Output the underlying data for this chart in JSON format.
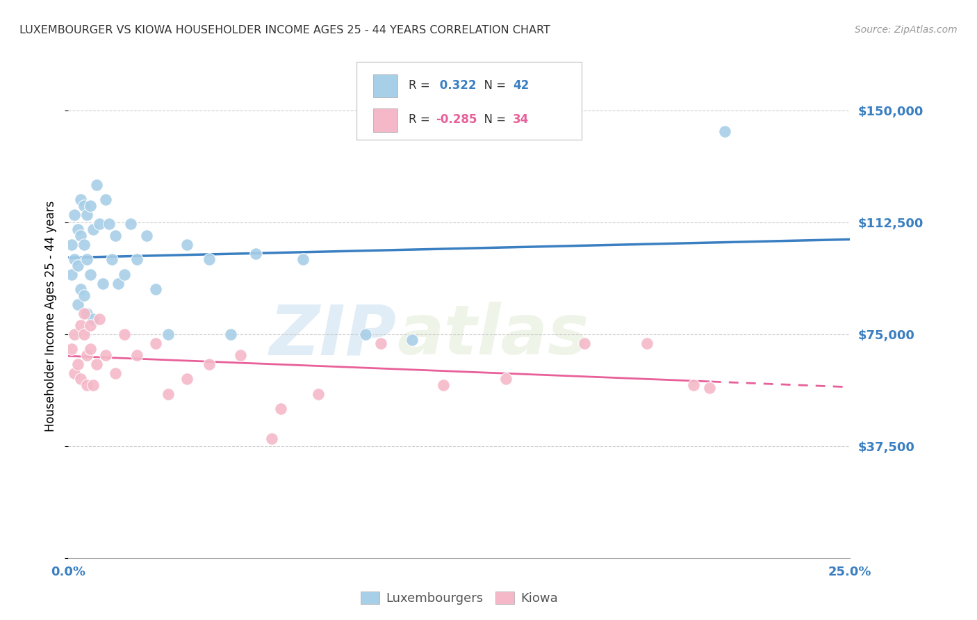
{
  "title": "LUXEMBOURGER VS KIOWA HOUSEHOLDER INCOME AGES 25 - 44 YEARS CORRELATION CHART",
  "source": "Source: ZipAtlas.com",
  "ylabel": "Householder Income Ages 25 - 44 years",
  "y_ticks": [
    0,
    37500,
    75000,
    112500,
    150000
  ],
  "y_tick_labels": [
    "",
    "$37,500",
    "$75,000",
    "$112,500",
    "$150,000"
  ],
  "x_min": 0.0,
  "x_max": 0.25,
  "y_min": 0,
  "y_max": 162000,
  "watermark_zip": "ZIP",
  "watermark_atlas": "atlas",
  "legend_lux_R": "0.322",
  "legend_lux_N": "42",
  "legend_kiowa_R": "-0.285",
  "legend_kiowa_N": "34",
  "blue_scatter_color": "#a8cfe8",
  "pink_scatter_color": "#f4b8c8",
  "blue_line_color": "#3a7fc1",
  "pink_line_color": "#e8609a",
  "legend_blue_fill": "#a8cfe8",
  "legend_pink_fill": "#f4b8c8",
  "lux_x": [
    0.001,
    0.001,
    0.002,
    0.002,
    0.003,
    0.003,
    0.003,
    0.004,
    0.004,
    0.004,
    0.005,
    0.005,
    0.005,
    0.006,
    0.006,
    0.006,
    0.007,
    0.007,
    0.008,
    0.008,
    0.009,
    0.01,
    0.011,
    0.012,
    0.013,
    0.014,
    0.015,
    0.016,
    0.018,
    0.02,
    0.022,
    0.025,
    0.028,
    0.032,
    0.038,
    0.045,
    0.052,
    0.06,
    0.075,
    0.095,
    0.11,
    0.21
  ],
  "lux_y": [
    105000,
    95000,
    115000,
    100000,
    110000,
    98000,
    85000,
    120000,
    108000,
    90000,
    118000,
    105000,
    88000,
    115000,
    100000,
    82000,
    118000,
    95000,
    110000,
    80000,
    125000,
    112000,
    92000,
    120000,
    112000,
    100000,
    108000,
    92000,
    95000,
    112000,
    100000,
    108000,
    90000,
    75000,
    105000,
    100000,
    75000,
    102000,
    100000,
    75000,
    73000,
    143000
  ],
  "kiowa_x": [
    0.001,
    0.002,
    0.002,
    0.003,
    0.004,
    0.004,
    0.005,
    0.005,
    0.006,
    0.006,
    0.007,
    0.007,
    0.008,
    0.009,
    0.01,
    0.012,
    0.015,
    0.018,
    0.022,
    0.028,
    0.032,
    0.038,
    0.045,
    0.055,
    0.065,
    0.068,
    0.08,
    0.1,
    0.12,
    0.14,
    0.165,
    0.185,
    0.2,
    0.205
  ],
  "kiowa_y": [
    70000,
    75000,
    62000,
    65000,
    78000,
    60000,
    75000,
    82000,
    68000,
    58000,
    78000,
    70000,
    58000,
    65000,
    80000,
    68000,
    62000,
    75000,
    68000,
    72000,
    55000,
    60000,
    65000,
    68000,
    40000,
    50000,
    55000,
    72000,
    58000,
    60000,
    72000,
    72000,
    58000,
    57000
  ],
  "bottom_legend_labels": [
    "Luxembourgers",
    "Kiowa"
  ]
}
